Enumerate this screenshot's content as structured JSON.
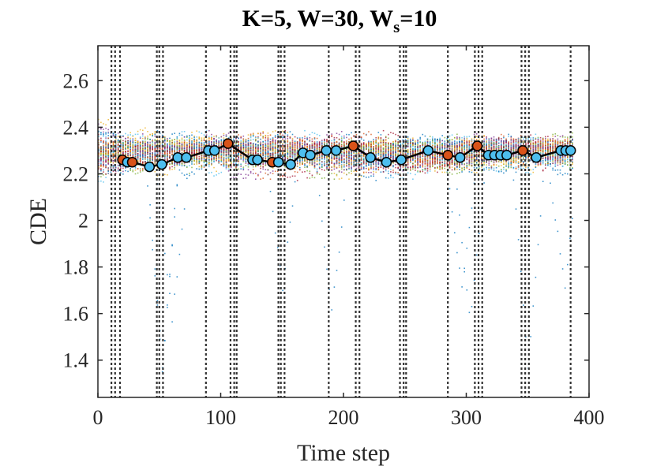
{
  "chart_data": {
    "type": "scatter",
    "title": "K=5, W=30, W",
    "title_subscript": "s",
    "title_suffix": "=10",
    "xlabel": "Time step",
    "ylabel": "CDE",
    "xlim": [
      0,
      400
    ],
    "ylim": [
      1.24,
      2.75
    ],
    "xticks": [
      0,
      100,
      200,
      300,
      400
    ],
    "yticks": [
      1.4,
      1.6,
      1.8,
      2,
      2.2,
      2.4,
      2.6
    ],
    "xtick_labels": [
      "0",
      "100",
      "200",
      "300",
      "400"
    ],
    "ytick_labels": [
      "1.4",
      "1.6",
      "1.8",
      "2",
      "2.2",
      "2.4",
      "2.6"
    ],
    "grid": false,
    "background_scatter": {
      "description_colors": [
        "#0072BD",
        "#D95319",
        "#EDB120",
        "#7E2F8E",
        "#77AC30",
        "#4DBEEE",
        "#A2142F"
      ],
      "series_count": 60,
      "x_range": [
        0,
        387
      ],
      "y_center": 2.3,
      "dips": [
        {
          "x": 52,
          "y": 1.25
        },
        {
          "x": 60,
          "y": 1.5
        },
        {
          "x": 150,
          "y": 1.65
        },
        {
          "x": 190,
          "y": 1.6
        },
        {
          "x": 296,
          "y": 1.6
        },
        {
          "x": 303,
          "y": 1.48
        },
        {
          "x": 350,
          "y": 1.32
        },
        {
          "x": 380,
          "y": 1.65
        }
      ]
    },
    "change_points": [
      11,
      14,
      18,
      48,
      50,
      53,
      88,
      108,
      111,
      113,
      147,
      149,
      152,
      188,
      210,
      213,
      246,
      249,
      251,
      285,
      307,
      310,
      313,
      345,
      348,
      351,
      385
    ],
    "mean_line": {
      "color": "#000000",
      "x": [
        20,
        24,
        28,
        42,
        52,
        65,
        72,
        90,
        95,
        106,
        126,
        130,
        142,
        147,
        157,
        167,
        173,
        186,
        194,
        208,
        222,
        235,
        247,
        269,
        285,
        295,
        309,
        318,
        323,
        328,
        333,
        346,
        357,
        377,
        381,
        385
      ],
      "y": [
        2.26,
        2.25,
        2.25,
        2.23,
        2.24,
        2.27,
        2.27,
        2.3,
        2.3,
        2.33,
        2.26,
        2.26,
        2.25,
        2.25,
        2.24,
        2.29,
        2.28,
        2.3,
        2.3,
        2.32,
        2.27,
        2.25,
        2.26,
        2.3,
        2.28,
        2.27,
        2.32,
        2.28,
        2.28,
        2.28,
        2.28,
        2.3,
        2.27,
        2.3,
        2.3,
        2.3
      ],
      "marker_colors": [
        "#D95319",
        "#4DBEEE",
        "#D95319",
        "#4DBEEE",
        "#4DBEEE",
        "#4DBEEE",
        "#4DBEEE",
        "#4DBEEE",
        "#4DBEEE",
        "#D95319",
        "#4DBEEE",
        "#4DBEEE",
        "#D95319",
        "#4DBEEE",
        "#4DBEEE",
        "#4DBEEE",
        "#4DBEEE",
        "#4DBEEE",
        "#4DBEEE",
        "#D95319",
        "#4DBEEE",
        "#4DBEEE",
        "#4DBEEE",
        "#4DBEEE",
        "#D95319",
        "#4DBEEE",
        "#D95319",
        "#4DBEEE",
        "#4DBEEE",
        "#4DBEEE",
        "#4DBEEE",
        "#D95319",
        "#4DBEEE",
        "#4DBEEE",
        "#4DBEEE",
        "#4DBEEE"
      ]
    }
  }
}
